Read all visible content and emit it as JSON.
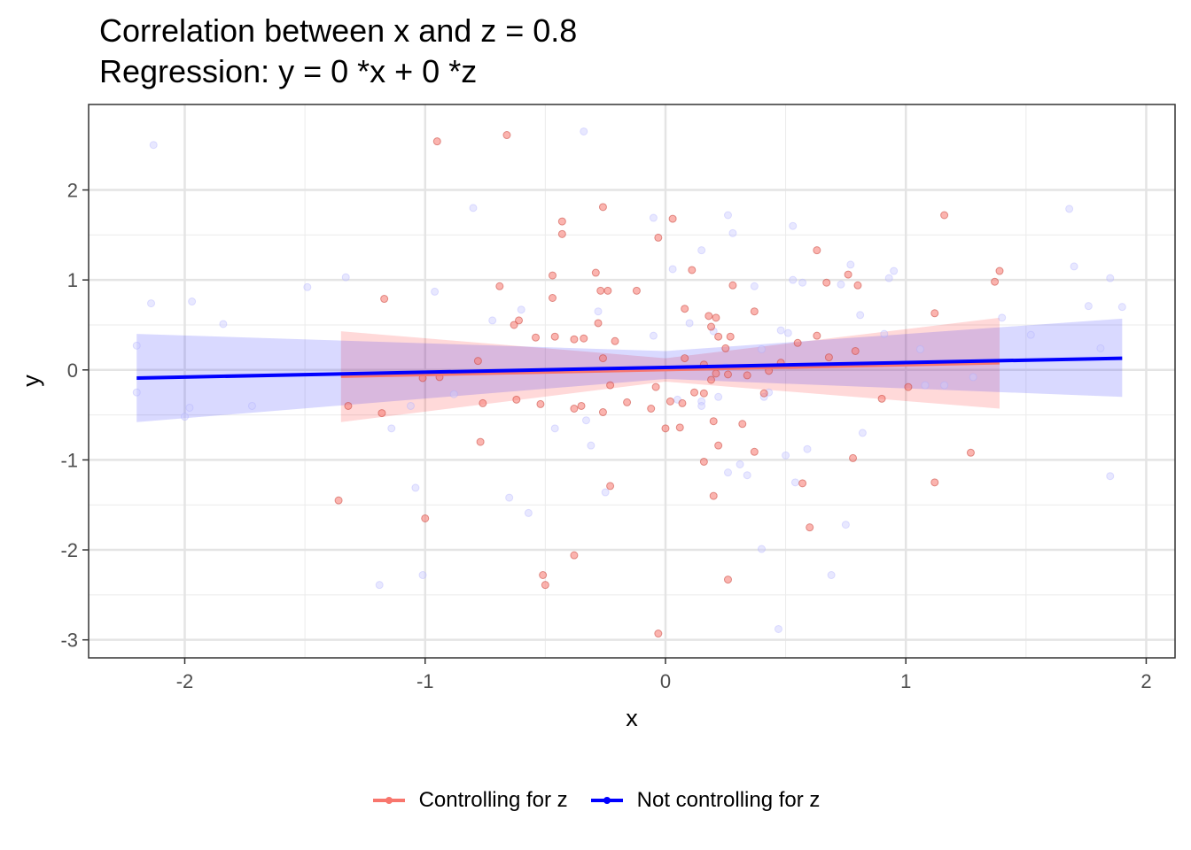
{
  "title_line1": "Correlation between x and z = 0.8",
  "title_line2": "Regression: y = 0 *x + 0 *z",
  "chart_data": {
    "type": "scatter",
    "title": "Correlation between x and z = 0.8\nRegression: y = 0 *x + 0 *z",
    "xlabel": "x",
    "ylabel": "y",
    "xlim": [
      -2.4,
      2.12
    ],
    "ylim": [
      -3.2,
      2.95
    ],
    "xticks": [
      -2,
      -1,
      0,
      1,
      2
    ],
    "yticks": [
      -3,
      -2,
      -1,
      0,
      1,
      2
    ],
    "xtick_labels": [
      "-2",
      "-1",
      "0",
      "1",
      "2"
    ],
    "ytick_labels": [
      "-3",
      "-2",
      "-1",
      "0",
      "1",
      "2"
    ],
    "grid": true,
    "legend_position": "bottom",
    "series": [
      {
        "name": "Controlling for z",
        "color": "#F8766D",
        "line": [
          [
            -1.35,
            -0.07
          ],
          [
            1.39,
            0.08
          ]
        ],
        "ribbon": [
          [
            -1.35,
            -0.58,
            0.43
          ],
          [
            0.0,
            -0.13,
            0.13
          ],
          [
            1.39,
            -0.43,
            0.58
          ]
        ],
        "points": [
          [
            -0.95,
            2.54
          ],
          [
            -0.66,
            2.61
          ],
          [
            -0.26,
            1.81
          ],
          [
            -0.43,
            1.65
          ],
          [
            -0.43,
            1.51
          ],
          [
            -0.47,
            1.05
          ],
          [
            -0.29,
            1.08
          ],
          [
            -0.69,
            0.93
          ],
          [
            -0.47,
            0.8
          ],
          [
            -0.27,
            0.88
          ],
          [
            -0.24,
            0.88
          ],
          [
            -0.12,
            0.88
          ],
          [
            -1.17,
            0.79
          ],
          [
            -0.61,
            0.55
          ],
          [
            -0.63,
            0.5
          ],
          [
            -0.28,
            0.52
          ],
          [
            -0.54,
            0.36
          ],
          [
            -0.46,
            0.37
          ],
          [
            -0.38,
            0.34
          ],
          [
            -0.34,
            0.35
          ],
          [
            -0.21,
            0.32
          ],
          [
            -0.26,
            0.13
          ],
          [
            -0.78,
            0.1
          ],
          [
            -1.01,
            -0.09
          ],
          [
            -0.94,
            -0.08
          ],
          [
            -1.32,
            -0.4
          ],
          [
            -1.18,
            -0.48
          ],
          [
            -0.76,
            -0.37
          ],
          [
            -0.62,
            -0.33
          ],
          [
            -0.52,
            -0.38
          ],
          [
            -0.38,
            -0.43
          ],
          [
            -0.35,
            -0.4
          ],
          [
            -0.26,
            -0.47
          ],
          [
            -0.23,
            -0.17
          ],
          [
            -0.16,
            -0.36
          ],
          [
            -0.06,
            -0.43
          ],
          [
            -0.04,
            -0.19
          ],
          [
            -0.77,
            -0.8
          ],
          [
            -1.36,
            -1.45
          ],
          [
            -1.0,
            -1.65
          ],
          [
            -0.23,
            -1.29
          ],
          [
            -0.51,
            -2.28
          ],
          [
            -0.5,
            -2.39
          ],
          [
            -0.38,
            -2.06
          ],
          [
            -0.03,
            -2.93
          ],
          [
            0.0,
            -0.65
          ],
          [
            -0.03,
            1.47
          ],
          [
            0.03,
            1.68
          ],
          [
            0.11,
            1.11
          ],
          [
            0.08,
            0.68
          ],
          [
            0.18,
            0.6
          ],
          [
            0.21,
            0.58
          ],
          [
            0.19,
            0.48
          ],
          [
            0.27,
            0.37
          ],
          [
            0.22,
            0.37
          ],
          [
            0.25,
            0.24
          ],
          [
            0.08,
            0.13
          ],
          [
            0.16,
            0.06
          ],
          [
            0.21,
            -0.04
          ],
          [
            0.19,
            -0.11
          ],
          [
            0.26,
            -0.05
          ],
          [
            0.07,
            -0.37
          ],
          [
            0.02,
            -0.35
          ],
          [
            0.06,
            -0.64
          ],
          [
            0.12,
            -0.25
          ],
          [
            0.16,
            -0.26
          ],
          [
            0.37,
            0.65
          ],
          [
            0.28,
            0.94
          ],
          [
            0.43,
            -0.01
          ],
          [
            0.48,
            0.08
          ],
          [
            0.34,
            -0.06
          ],
          [
            0.41,
            -0.26
          ],
          [
            0.32,
            -0.6
          ],
          [
            0.37,
            -0.91
          ],
          [
            0.22,
            -0.84
          ],
          [
            0.16,
            -1.02
          ],
          [
            0.2,
            -0.57
          ],
          [
            0.2,
            -1.4
          ],
          [
            0.26,
            -2.33
          ],
          [
            0.55,
            0.3
          ],
          [
            0.63,
            0.38
          ],
          [
            0.63,
            1.33
          ],
          [
            0.67,
            0.97
          ],
          [
            0.76,
            1.06
          ],
          [
            0.8,
            0.94
          ],
          [
            0.68,
            0.14
          ],
          [
            0.79,
            0.21
          ],
          [
            0.78,
            -0.98
          ],
          [
            0.57,
            -1.26
          ],
          [
            0.6,
            -1.75
          ],
          [
            0.9,
            -0.32
          ],
          [
            1.01,
            -0.19
          ],
          [
            1.12,
            0.63
          ],
          [
            1.16,
            1.72
          ],
          [
            1.37,
            0.98
          ],
          [
            1.39,
            1.1
          ],
          [
            1.12,
            -1.25
          ],
          [
            1.27,
            -0.92
          ]
        ]
      },
      {
        "name": "Not controlling for z",
        "color": "#0000FF",
        "line": [
          [
            -2.2,
            -0.09
          ],
          [
            1.9,
            0.13
          ]
        ],
        "ribbon": [
          [
            -2.2,
            -0.58,
            0.4
          ],
          [
            0.0,
            -0.1,
            0.21
          ],
          [
            1.9,
            -0.3,
            0.57
          ]
        ],
        "points": [
          [
            -2.13,
            2.5
          ],
          [
            -2.2,
            0.27
          ],
          [
            -2.14,
            0.74
          ],
          [
            -1.97,
            0.76
          ],
          [
            -1.84,
            0.51
          ],
          [
            -2.2,
            -0.25
          ],
          [
            -1.98,
            -0.42
          ],
          [
            -2.0,
            -0.52
          ],
          [
            -1.72,
            -0.4
          ],
          [
            -1.49,
            0.92
          ],
          [
            -1.33,
            1.03
          ],
          [
            -1.19,
            -2.39
          ],
          [
            -1.14,
            -0.65
          ],
          [
            -1.06,
            -0.4
          ],
          [
            -1.04,
            -1.31
          ],
          [
            -1.01,
            -2.28
          ],
          [
            -0.96,
            0.87
          ],
          [
            -0.88,
            -0.27
          ],
          [
            -0.8,
            1.8
          ],
          [
            -0.72,
            0.55
          ],
          [
            -0.6,
            0.67
          ],
          [
            -0.65,
            -1.42
          ],
          [
            -0.57,
            -1.59
          ],
          [
            -0.46,
            -0.65
          ],
          [
            -0.34,
            2.65
          ],
          [
            -0.33,
            -0.56
          ],
          [
            -0.31,
            -0.84
          ],
          [
            -0.28,
            0.65
          ],
          [
            -0.25,
            -1.36
          ],
          [
            -0.05,
            1.69
          ],
          [
            -0.05,
            0.38
          ],
          [
            0.03,
            1.12
          ],
          [
            0.15,
            1.33
          ],
          [
            0.1,
            0.52
          ],
          [
            0.05,
            -0.33
          ],
          [
            0.15,
            -0.35
          ],
          [
            0.15,
            -0.4
          ],
          [
            0.2,
            0.43
          ],
          [
            0.25,
            0.03
          ],
          [
            0.22,
            -0.3
          ],
          [
            0.31,
            -1.05
          ],
          [
            0.26,
            -1.14
          ],
          [
            0.34,
            -1.17
          ],
          [
            0.26,
            1.72
          ],
          [
            0.28,
            1.52
          ],
          [
            0.37,
            0.93
          ],
          [
            0.4,
            0.23
          ],
          [
            0.41,
            -0.3
          ],
          [
            0.43,
            -0.25
          ],
          [
            0.4,
            -1.99
          ],
          [
            0.47,
            -2.88
          ],
          [
            0.5,
            -0.95
          ],
          [
            0.53,
            1.6
          ],
          [
            0.53,
            1.0
          ],
          [
            0.57,
            0.97
          ],
          [
            0.48,
            0.44
          ],
          [
            0.51,
            0.41
          ],
          [
            0.59,
            -0.88
          ],
          [
            0.54,
            -1.25
          ],
          [
            0.69,
            -2.28
          ],
          [
            0.73,
            0.95
          ],
          [
            0.77,
            1.17
          ],
          [
            0.81,
            0.61
          ],
          [
            0.75,
            -1.72
          ],
          [
            0.82,
            -0.7
          ],
          [
            0.91,
            0.4
          ],
          [
            0.93,
            1.02
          ],
          [
            0.95,
            1.1
          ],
          [
            1.06,
            0.23
          ],
          [
            1.08,
            -0.17
          ],
          [
            1.16,
            -0.17
          ],
          [
            1.28,
            -0.08
          ],
          [
            1.4,
            0.58
          ],
          [
            1.52,
            0.39
          ],
          [
            1.68,
            1.79
          ],
          [
            1.7,
            1.15
          ],
          [
            1.76,
            0.71
          ],
          [
            1.81,
            0.24
          ],
          [
            1.85,
            1.02
          ],
          [
            1.9,
            0.7
          ],
          [
            1.85,
            -1.18
          ]
        ]
      }
    ]
  }
}
